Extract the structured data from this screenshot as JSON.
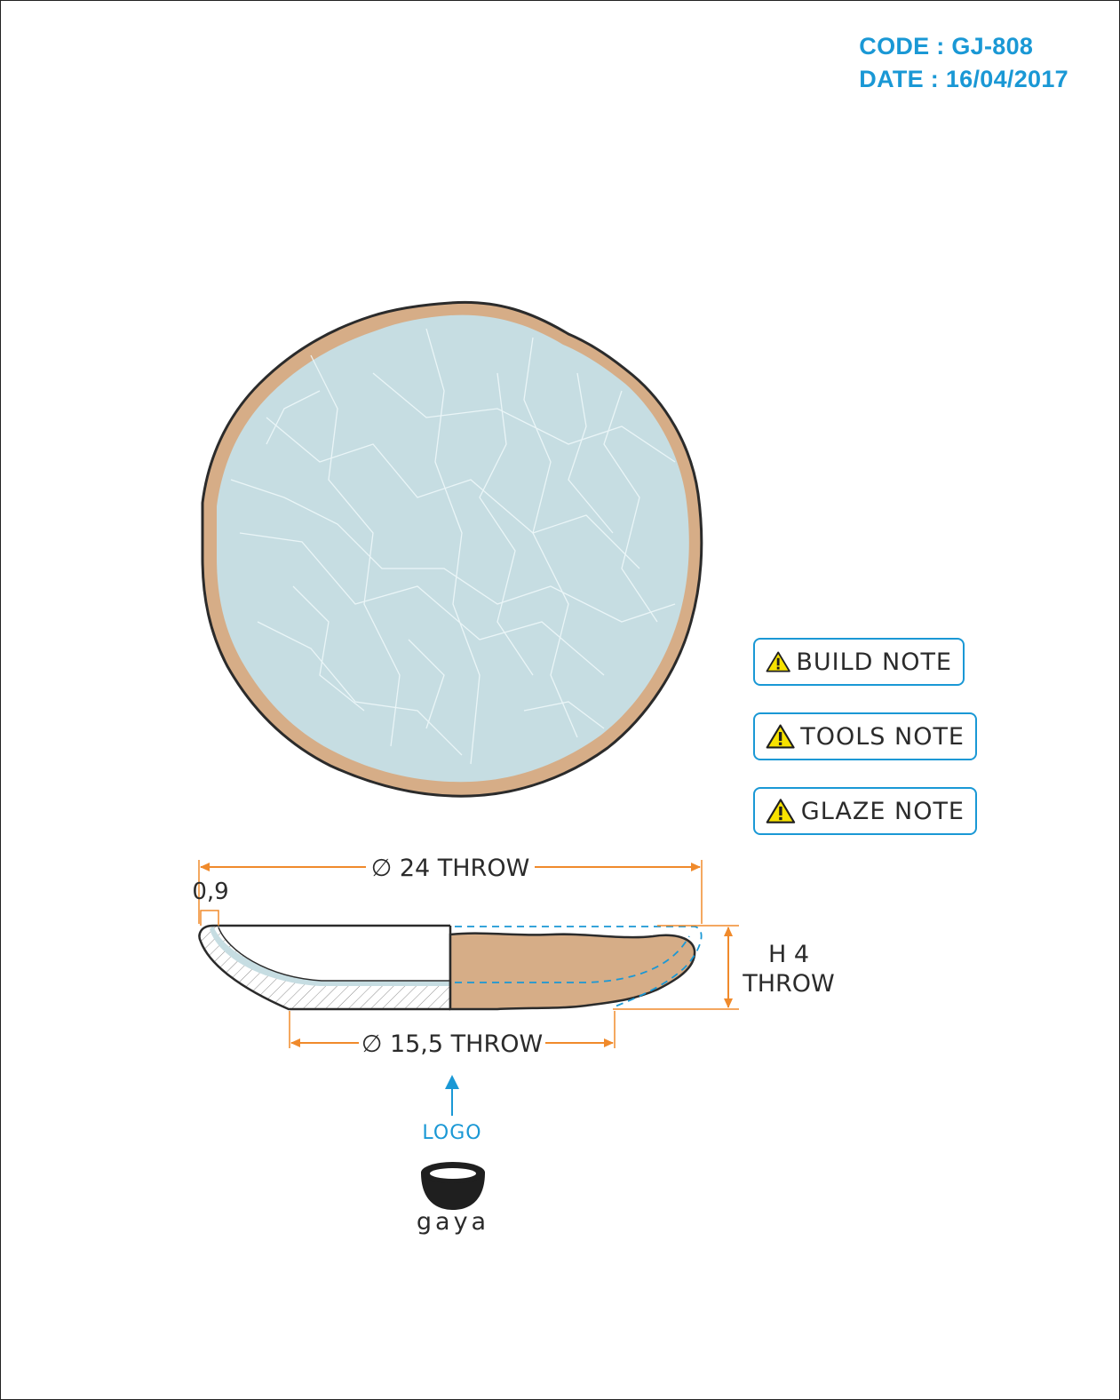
{
  "header": {
    "code_line": "CODE : GJ-808",
    "date_line": "DATE : 16/04/2017"
  },
  "notes": [
    {
      "label": "BUILD NOTE",
      "icon": "warning-icon"
    },
    {
      "label": "TOOLS NOTE",
      "icon": "warning-icon"
    },
    {
      "label": "GLAZE NOTE",
      "icon": "warning-icon"
    }
  ],
  "dimensions": {
    "outer_diameter": "∅ 24 THROW",
    "rim_thickness": "0,9",
    "base_diameter": "∅ 15,5 THROW",
    "height_line1": "H 4",
    "height_line2": "THROW"
  },
  "logo": {
    "pointer_label": "LOGO",
    "brand": "gaya"
  },
  "colors": {
    "accent_blue": "#1a98d5",
    "dimension_orange": "#f08a2b",
    "glaze_blue": "#c6dde2",
    "clay": "#d6ad87",
    "outline": "#2b2b2b"
  }
}
